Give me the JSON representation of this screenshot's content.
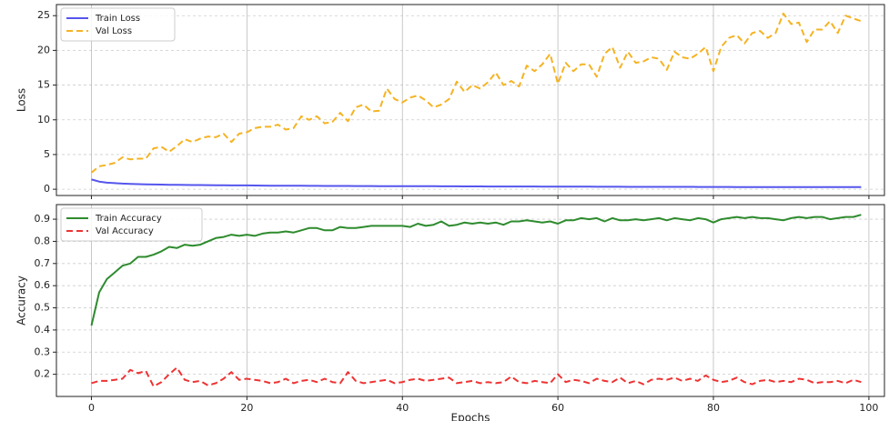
{
  "chart_data": [
    {
      "type": "line",
      "ylabel": "Loss",
      "sharex": true,
      "grid": true,
      "legend": "upper left",
      "x": [
        0,
        1,
        2,
        3,
        4,
        5,
        6,
        7,
        8,
        9,
        10,
        11,
        12,
        13,
        14,
        15,
        16,
        17,
        18,
        19,
        20,
        21,
        22,
        23,
        24,
        25,
        26,
        27,
        28,
        29,
        30,
        31,
        32,
        33,
        34,
        35,
        36,
        37,
        38,
        39,
        40,
        41,
        42,
        43,
        44,
        45,
        46,
        47,
        48,
        49,
        50,
        51,
        52,
        53,
        54,
        55,
        56,
        57,
        58,
        59,
        60,
        61,
        62,
        63,
        64,
        65,
        66,
        67,
        68,
        69,
        70,
        71,
        72,
        73,
        74,
        75,
        76,
        77,
        78,
        79,
        80,
        81,
        82,
        83,
        84,
        85,
        86,
        87,
        88,
        89,
        90,
        91,
        92,
        93,
        94,
        95,
        96,
        97,
        98,
        99
      ],
      "xlim": [
        -4.5,
        102
      ],
      "xticks": [
        0,
        20,
        40,
        60,
        80,
        100
      ],
      "ylim": [
        -0.9,
        26.6
      ],
      "yticks": [
        0,
        5,
        10,
        15,
        20,
        25
      ],
      "series": [
        {
          "name": "Train Loss",
          "color": "#5555ee",
          "dash": "solid",
          "values": [
            1.4,
            1.1,
            0.95,
            0.88,
            0.82,
            0.78,
            0.74,
            0.71,
            0.69,
            0.67,
            0.65,
            0.63,
            0.62,
            0.61,
            0.6,
            0.59,
            0.58,
            0.57,
            0.56,
            0.55,
            0.55,
            0.54,
            0.53,
            0.52,
            0.52,
            0.51,
            0.5,
            0.5,
            0.49,
            0.49,
            0.48,
            0.48,
            0.47,
            0.47,
            0.46,
            0.46,
            0.46,
            0.45,
            0.45,
            0.44,
            0.44,
            0.44,
            0.43,
            0.43,
            0.43,
            0.42,
            0.42,
            0.42,
            0.41,
            0.41,
            0.41,
            0.4,
            0.4,
            0.4,
            0.39,
            0.39,
            0.39,
            0.39,
            0.38,
            0.38,
            0.38,
            0.37,
            0.37,
            0.37,
            0.37,
            0.36,
            0.36,
            0.36,
            0.36,
            0.35,
            0.35,
            0.35,
            0.35,
            0.34,
            0.34,
            0.34,
            0.34,
            0.34,
            0.33,
            0.33,
            0.33,
            0.33,
            0.33,
            0.32,
            0.32,
            0.32,
            0.32,
            0.32,
            0.31,
            0.31,
            0.31,
            0.31,
            0.31,
            0.31,
            0.3,
            0.3,
            0.3,
            0.3,
            0.3,
            0.3
          ]
        },
        {
          "name": "Val Loss",
          "color": "#f5b323",
          "dash": "dashed",
          "values": [
            2.4,
            3.3,
            3.5,
            3.8,
            4.6,
            4.3,
            4.4,
            4.4,
            5.9,
            6.1,
            5.4,
            6.2,
            7.2,
            6.8,
            7.3,
            7.6,
            7.5,
            8.0,
            6.8,
            8.0,
            8.2,
            8.8,
            9.0,
            9.0,
            9.3,
            8.6,
            8.8,
            10.5,
            10.0,
            10.5,
            9.5,
            9.7,
            11.0,
            9.8,
            11.8,
            12.2,
            11.2,
            11.3,
            14.5,
            13.0,
            12.5,
            13.2,
            13.5,
            12.8,
            11.8,
            12.2,
            13.0,
            15.5,
            14.0,
            15.0,
            14.5,
            15.4,
            16.8,
            15.0,
            15.6,
            14.8,
            17.8,
            17.0,
            18.0,
            19.5,
            15.2,
            18.2,
            17.0,
            18.0,
            18.0,
            16.2,
            19.5,
            20.5,
            17.5,
            19.8,
            18.2,
            18.4,
            19.0,
            18.8,
            17.2,
            19.8,
            19.0,
            18.8,
            19.5,
            20.5,
            17.0,
            20.5,
            21.8,
            22.2,
            21.0,
            22.5,
            22.8,
            21.8,
            22.5,
            25.3,
            23.8,
            24.0,
            21.2,
            23.0,
            23.0,
            24.2,
            22.5,
            25.0,
            24.6,
            24.2
          ]
        }
      ]
    },
    {
      "type": "line",
      "ylabel": "Accuracy",
      "xlabel": "Epochs",
      "grid": true,
      "legend": "upper left",
      "x": [
        0,
        1,
        2,
        3,
        4,
        5,
        6,
        7,
        8,
        9,
        10,
        11,
        12,
        13,
        14,
        15,
        16,
        17,
        18,
        19,
        20,
        21,
        22,
        23,
        24,
        25,
        26,
        27,
        28,
        29,
        30,
        31,
        32,
        33,
        34,
        35,
        36,
        37,
        38,
        39,
        40,
        41,
        42,
        43,
        44,
        45,
        46,
        47,
        48,
        49,
        50,
        51,
        52,
        53,
        54,
        55,
        56,
        57,
        58,
        59,
        60,
        61,
        62,
        63,
        64,
        65,
        66,
        67,
        68,
        69,
        70,
        71,
        72,
        73,
        74,
        75,
        76,
        77,
        78,
        79,
        80,
        81,
        82,
        83,
        84,
        85,
        86,
        87,
        88,
        89,
        90,
        91,
        92,
        93,
        94,
        95,
        96,
        97,
        98,
        99
      ],
      "xlim": [
        -4.5,
        102
      ],
      "xticks": [
        0,
        20,
        40,
        60,
        80,
        100
      ],
      "ylim": [
        0.1,
        0.966
      ],
      "yticks": [
        0.2,
        0.3,
        0.4,
        0.5,
        0.6,
        0.7,
        0.8,
        0.9
      ],
      "series": [
        {
          "name": "Train Accuracy",
          "color": "#2e8b2e",
          "dash": "solid",
          "values": [
            0.42,
            0.57,
            0.63,
            0.66,
            0.69,
            0.7,
            0.73,
            0.73,
            0.74,
            0.755,
            0.775,
            0.77,
            0.785,
            0.78,
            0.785,
            0.8,
            0.815,
            0.82,
            0.83,
            0.825,
            0.83,
            0.825,
            0.835,
            0.84,
            0.84,
            0.845,
            0.84,
            0.85,
            0.86,
            0.86,
            0.85,
            0.85,
            0.865,
            0.86,
            0.86,
            0.865,
            0.87,
            0.87,
            0.87,
            0.87,
            0.87,
            0.865,
            0.88,
            0.87,
            0.875,
            0.89,
            0.87,
            0.875,
            0.885,
            0.88,
            0.885,
            0.88,
            0.885,
            0.875,
            0.89,
            0.89,
            0.895,
            0.89,
            0.885,
            0.89,
            0.88,
            0.895,
            0.895,
            0.905,
            0.9,
            0.905,
            0.89,
            0.905,
            0.895,
            0.895,
            0.9,
            0.895,
            0.9,
            0.905,
            0.895,
            0.905,
            0.9,
            0.895,
            0.905,
            0.9,
            0.885,
            0.9,
            0.905,
            0.91,
            0.905,
            0.91,
            0.905,
            0.905,
            0.9,
            0.895,
            0.905,
            0.91,
            0.905,
            0.91,
            0.91,
            0.9,
            0.905,
            0.91,
            0.91,
            0.92
          ]
        },
        {
          "name": "Val Accuracy",
          "color": "#ee3333",
          "dash": "dashed",
          "values": [
            0.16,
            0.17,
            0.17,
            0.175,
            0.18,
            0.22,
            0.205,
            0.215,
            0.145,
            0.165,
            0.2,
            0.23,
            0.175,
            0.165,
            0.17,
            0.15,
            0.16,
            0.18,
            0.21,
            0.175,
            0.18,
            0.175,
            0.17,
            0.16,
            0.165,
            0.18,
            0.16,
            0.17,
            0.175,
            0.165,
            0.18,
            0.165,
            0.16,
            0.21,
            0.17,
            0.16,
            0.165,
            0.17,
            0.175,
            0.16,
            0.165,
            0.175,
            0.18,
            0.17,
            0.175,
            0.18,
            0.185,
            0.16,
            0.165,
            0.17,
            0.16,
            0.165,
            0.16,
            0.165,
            0.19,
            0.165,
            0.16,
            0.17,
            0.165,
            0.16,
            0.2,
            0.165,
            0.175,
            0.17,
            0.16,
            0.18,
            0.17,
            0.165,
            0.185,
            0.16,
            0.17,
            0.155,
            0.175,
            0.18,
            0.175,
            0.185,
            0.17,
            0.18,
            0.17,
            0.195,
            0.175,
            0.165,
            0.17,
            0.185,
            0.165,
            0.155,
            0.17,
            0.175,
            0.165,
            0.17,
            0.165,
            0.18,
            0.175,
            0.16,
            0.165,
            0.165,
            0.17,
            0.16,
            0.175,
            0.165
          ]
        }
      ]
    }
  ]
}
